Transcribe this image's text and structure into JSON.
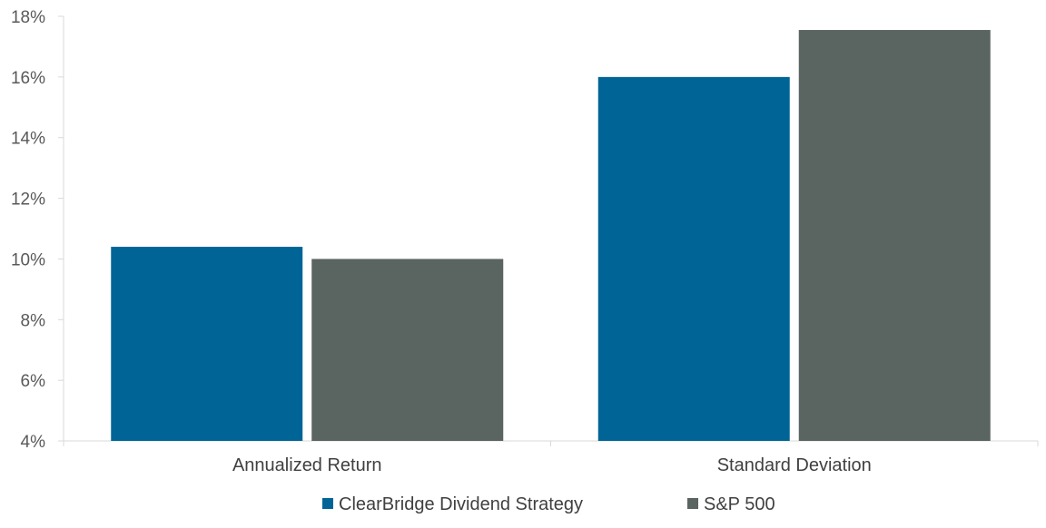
{
  "chart_data": {
    "type": "bar",
    "categories": [
      "Annualized Return",
      "Standard Deviation"
    ],
    "series": [
      {
        "name": "ClearBridge Dividend Strategy",
        "values": [
          10.4,
          16.0
        ],
        "color": "#006596"
      },
      {
        "name": "S&P 500",
        "values": [
          10.0,
          17.55
        ],
        "color": "#5A6460"
      }
    ],
    "ylim": [
      4,
      18
    ],
    "yticks": [
      4,
      6,
      8,
      10,
      12,
      14,
      16,
      18
    ],
    "ytick_labels": [
      "4%",
      "6%",
      "8%",
      "10%",
      "12%",
      "14%",
      "16%",
      "18%"
    ],
    "grid": false,
    "legend_position": "bottom",
    "axis_color": "#D9D9D9"
  }
}
